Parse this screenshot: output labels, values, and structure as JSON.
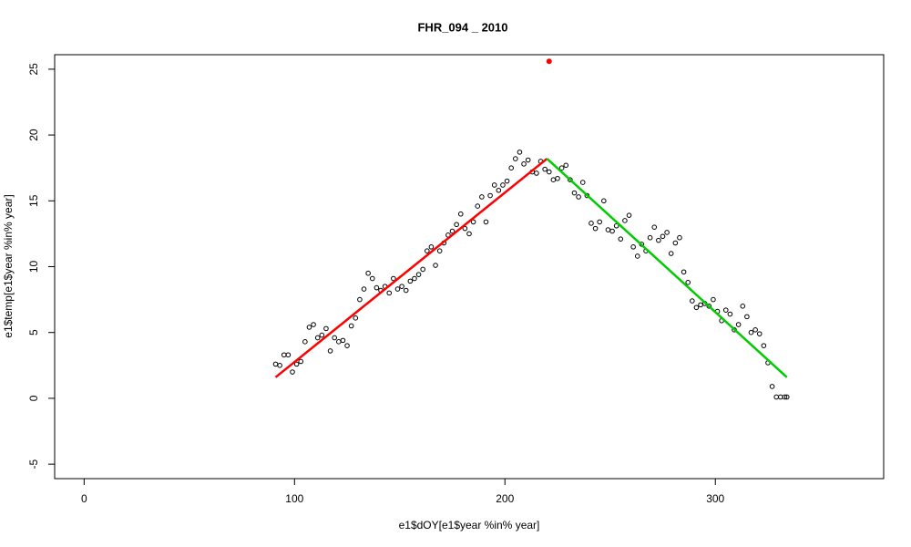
{
  "chart_data": {
    "type": "scatter",
    "title": "FHR_094 _ 2010",
    "x_label": "e1$dOY[e1$year %in% year]",
    "y_label": "e1$temp[e1$year %in% year]",
    "xlim": [
      -14,
      380
    ],
    "ylim": [
      -6.1,
      26.1
    ],
    "xticks": [
      0,
      100,
      200,
      300
    ],
    "yticks": [
      -5,
      0,
      5,
      10,
      15,
      20,
      25
    ],
    "grid": false,
    "series": [
      {
        "color": "#000000",
        "style": "points",
        "x": [
          91,
          93,
          95,
          97,
          99,
          101,
          103,
          105,
          107,
          109,
          111,
          113,
          115,
          117,
          119,
          121,
          123,
          125,
          127,
          129,
          131,
          133,
          135,
          137,
          139,
          141,
          143,
          145,
          147,
          149,
          151,
          153,
          155,
          157,
          159,
          161,
          163,
          165,
          167,
          169,
          171,
          173,
          175,
          177,
          179,
          181,
          183,
          185,
          187,
          189,
          191,
          193,
          195,
          197,
          199,
          201,
          203,
          205,
          207,
          209,
          211,
          213,
          215,
          217,
          219,
          221,
          223,
          225,
          227,
          229,
          231,
          233,
          235,
          237,
          239,
          241,
          243,
          245,
          247,
          249,
          251,
          253,
          255,
          257,
          259,
          261,
          263,
          265,
          267,
          269,
          271,
          273,
          275,
          277,
          279,
          281,
          283,
          285,
          287,
          289,
          291,
          293,
          295,
          297,
          299,
          301,
          303,
          305,
          307,
          309,
          311,
          313,
          315,
          317,
          319,
          321,
          323,
          325,
          327,
          329,
          331,
          333,
          334
        ],
        "values": [
          2.6,
          2.5,
          3.3,
          3.3,
          2.0,
          2.6,
          2.8,
          4.3,
          5.4,
          5.6,
          4.6,
          4.8,
          5.3,
          3.6,
          4.6,
          4.3,
          4.4,
          4.0,
          5.5,
          6.1,
          7.5,
          8.3,
          9.5,
          9.1,
          8.4,
          8.2,
          8.5,
          8.0,
          9.1,
          8.3,
          8.5,
          8.2,
          8.9,
          9.1,
          9.4,
          9.8,
          11.2,
          11.5,
          10.1,
          11.2,
          11.8,
          12.4,
          12.7,
          13.2,
          14.0,
          12.9,
          12.5,
          13.4,
          14.6,
          15.3,
          13.4,
          15.4,
          16.2,
          15.8,
          16.2,
          16.5,
          17.5,
          18.2,
          18.7,
          17.8,
          18.1,
          17.2,
          17.1,
          18.0,
          17.4,
          17.2,
          16.6,
          16.7,
          17.5,
          17.7,
          16.6,
          15.6,
          15.3,
          16.4,
          15.4,
          13.3,
          12.9,
          13.4,
          15.0,
          12.8,
          12.7,
          13.1,
          12.1,
          13.5,
          13.9,
          11.5,
          10.8,
          11.7,
          11.2,
          12.2,
          13.0,
          12.0,
          12.3,
          12.6,
          11.0,
          11.8,
          12.2,
          9.6,
          8.8,
          7.4,
          6.9,
          7.1,
          7.2,
          7.0,
          7.5,
          6.6,
          5.9,
          6.7,
          6.4,
          5.2,
          5.6,
          7.0,
          6.2,
          5.0,
          5.2,
          4.9,
          4.0,
          2.7,
          0.9,
          0.1,
          0.1,
          0.1,
          0.1
        ]
      },
      {
        "color": "#ff0000",
        "style": "line",
        "x": [
          91,
          220
        ],
        "values": [
          1.6,
          18.2
        ]
      },
      {
        "color": "#00cc00",
        "style": "line",
        "x": [
          220,
          334
        ],
        "values": [
          18.2,
          1.6
        ]
      },
      {
        "color": "#ff0000",
        "style": "filled-points",
        "x": [
          221
        ],
        "values": [
          25.6
        ]
      }
    ]
  }
}
